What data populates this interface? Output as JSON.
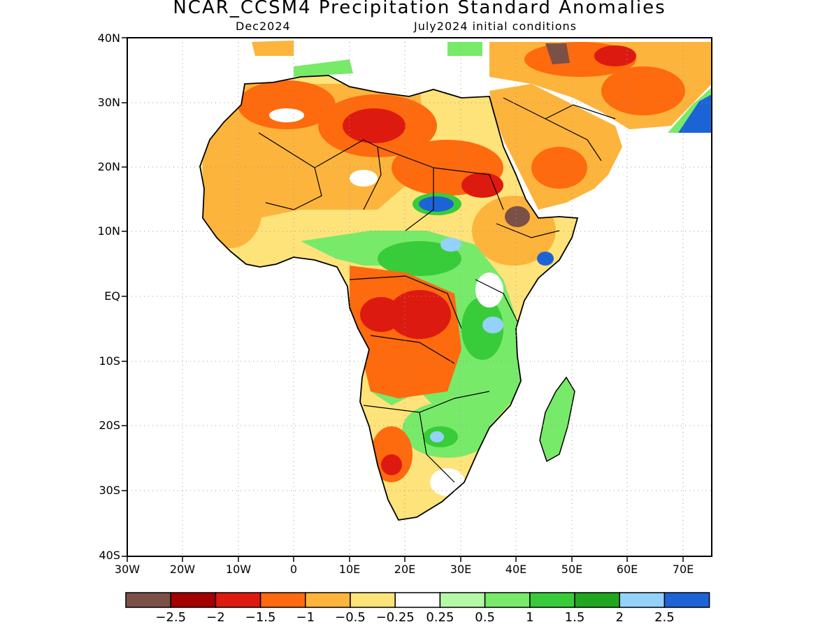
{
  "title": "NCAR_CCSM4 Precipitation Standard Anomalies",
  "subtitle_left": "Dec2024",
  "subtitle_right": "July2024 initial conditions",
  "map": {
    "region": "Africa and Middle East",
    "lat_ticks": [
      "40N",
      "30N",
      "20N",
      "10N",
      "EQ",
      "10S",
      "20S",
      "30S",
      "40S"
    ],
    "lon_ticks": [
      "30W",
      "20W",
      "10W",
      "0",
      "10E",
      "20E",
      "30E",
      "40E",
      "50E",
      "60E",
      "70E"
    ],
    "grid": "dotted"
  },
  "legend": {
    "labels": [
      "−2.5",
      "−2",
      "−1.5",
      "−1",
      "−0.5",
      "−0.25",
      "0.25",
      "0.5",
      "1",
      "1.5",
      "2",
      "2.5"
    ],
    "colors": [
      "#7b5046",
      "#a40000",
      "#dd1a10",
      "#fe6a0e",
      "#fdb43c",
      "#fde37a",
      "#ffffff",
      "#b5f8a6",
      "#78ea6a",
      "#38cc3a",
      "#20a621",
      "#94d1fb",
      "#1c64d6"
    ]
  }
}
